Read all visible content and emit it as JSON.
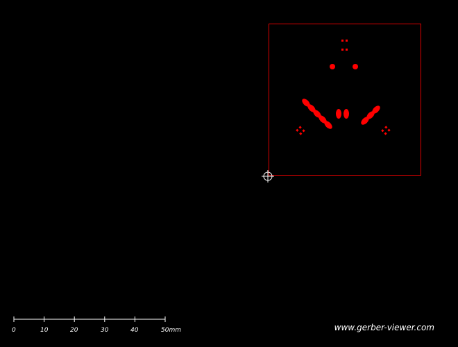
{
  "viewer": {
    "background_color": "#000000",
    "layer_color": "#ff0000",
    "outline_color": "#e00000",
    "marker_color": "#ffffff",
    "origin_marker_icon": "crosshair-target-icon"
  },
  "scale_bar": {
    "labels": [
      "0",
      "10",
      "20",
      "30",
      "40",
      "50mm"
    ]
  },
  "watermark": {
    "text": "www.gerber-viewer.com"
  }
}
